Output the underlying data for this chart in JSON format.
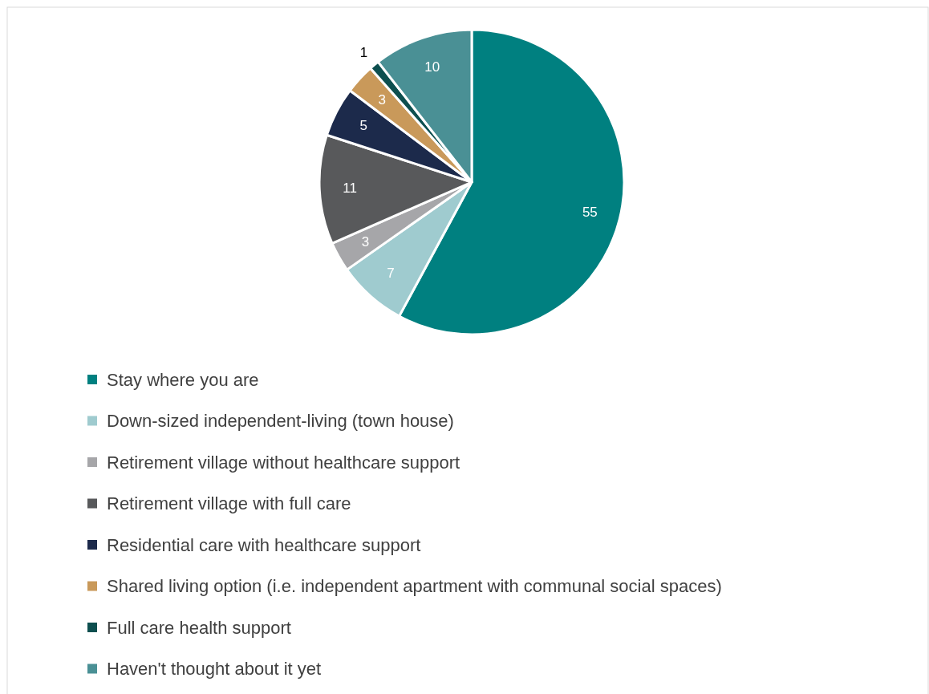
{
  "chart_data": {
    "type": "pie",
    "categories": [
      "Stay where you are",
      "Down-sized independent-living (town house)",
      "Retirement village without healthcare support",
      "Retirement village with full care",
      "Residential care with healthcare support",
      "Shared living option (i.e. independent apartment with communal social spaces)",
      "Full care health support",
      "Haven't thought about it yet"
    ],
    "values": [
      55,
      7,
      3,
      11,
      5,
      3,
      1,
      10
    ],
    "colors": [
      "#008080",
      "#9fcbcf",
      "#a6a6a9",
      "#58595b",
      "#1c2a4b",
      "#c9995a",
      "#0d4f4f",
      "#4a9095"
    ],
    "data_labels": true,
    "legend": "bottom"
  }
}
